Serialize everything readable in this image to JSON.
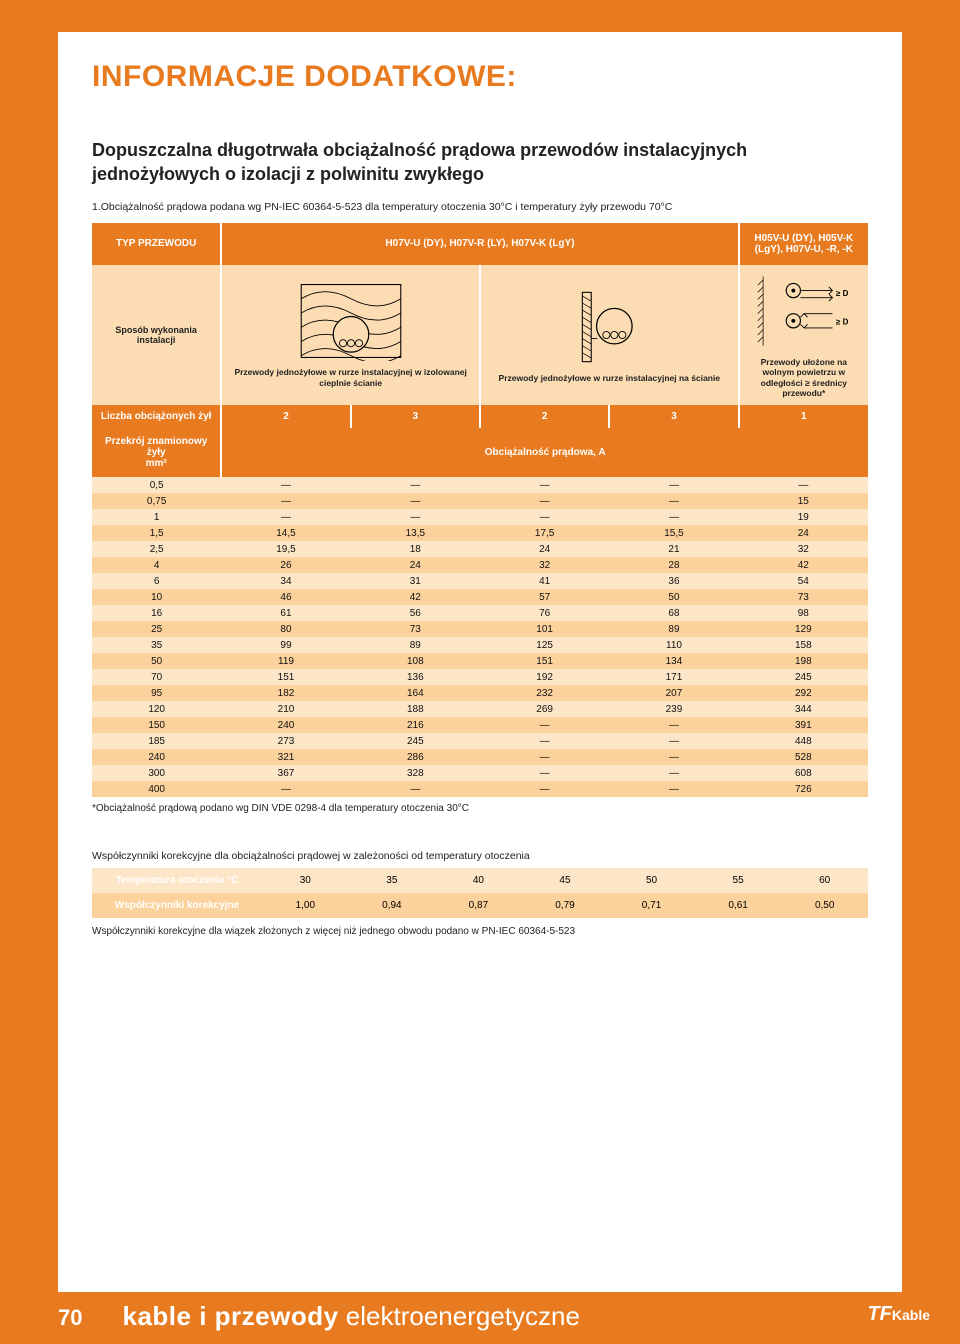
{
  "header": {
    "main_title": "INFORMACJE DODATKOWE:",
    "subtitle": "Dopuszczalna długotrwała obciążalność prądowa przewodów instalacyjnych jednożyłowych o izolacji z polwinitu zwykłego",
    "cond_note": "1.Obciążalność prądowa podana wg PN-IEC 60364-5-523 dla temperatury otoczenia 30°C i temperatury żyły przewodu 70°C"
  },
  "table_header": {
    "col1": "TYP PRZEWODU",
    "col2": "H07V-U (DY), H07V-R (LY), H07V-K (LgY)",
    "col3": "H05V-U (DY), H05V-K (LgY), H07V-U, -R, -K"
  },
  "diagram_row": {
    "col1": "Sposób wykonania instalacji",
    "cap2": "Przewody jednożyłowe w rurze instalacyjnej w izolowanej cieplnie ścianie",
    "cap3": "Przewody jednożyłowe w rurze instalacyjnej na ścianie",
    "cap4": "Przewody ułożone na wolnym powietrzu w odległości ≥ średnicy przewodu*",
    "d_label_top": "≥ D",
    "d_label_bot": "≥ D"
  },
  "count_row": {
    "label": "Liczba obciążonych żył",
    "vals": [
      "2",
      "3",
      "2",
      "3",
      "1"
    ]
  },
  "mid_row": {
    "label_lines": [
      "Przekrój znamionowy",
      "żyły",
      "mm²"
    ],
    "right": "Obciążalność prądowa, A"
  },
  "data": {
    "rows": [
      [
        "0,5",
        "—",
        "—",
        "—",
        "—",
        "—"
      ],
      [
        "0,75",
        "—",
        "—",
        "—",
        "—",
        "15"
      ],
      [
        "1",
        "—",
        "—",
        "—",
        "—",
        "19"
      ],
      [
        "1,5",
        "14,5",
        "13,5",
        "17,5",
        "15,5",
        "24"
      ],
      [
        "2,5",
        "19,5",
        "18",
        "24",
        "21",
        "32"
      ],
      [
        "4",
        "26",
        "24",
        "32",
        "28",
        "42"
      ],
      [
        "6",
        "34",
        "31",
        "41",
        "36",
        "54"
      ],
      [
        "10",
        "46",
        "42",
        "57",
        "50",
        "73"
      ],
      [
        "16",
        "61",
        "56",
        "76",
        "68",
        "98"
      ],
      [
        "25",
        "80",
        "73",
        "101",
        "89",
        "129"
      ],
      [
        "35",
        "99",
        "89",
        "125",
        "110",
        "158"
      ],
      [
        "50",
        "119",
        "108",
        "151",
        "134",
        "198"
      ],
      [
        "70",
        "151",
        "136",
        "192",
        "171",
        "245"
      ],
      [
        "95",
        "182",
        "164",
        "232",
        "207",
        "292"
      ],
      [
        "120",
        "210",
        "188",
        "269",
        "239",
        "344"
      ],
      [
        "150",
        "240",
        "216",
        "—",
        "—",
        "391"
      ],
      [
        "185",
        "273",
        "245",
        "—",
        "—",
        "448"
      ],
      [
        "240",
        "321",
        "286",
        "—",
        "—",
        "528"
      ],
      [
        "300",
        "367",
        "328",
        "—",
        "—",
        "608"
      ],
      [
        "400",
        "—",
        "—",
        "—",
        "—",
        "726"
      ]
    ]
  },
  "footnote": "*Obciążalność prądową podano wg DIN VDE 0298-4 dla temperatury otoczenia 30°C",
  "corr": {
    "title": "Współczynniki korekcyjne dla obciążalności prądowej w zależoności od temperatury otoczenia",
    "row1_label": "Temperatura otoczenia °C",
    "row1_vals": [
      "30",
      "35",
      "40",
      "45",
      "50",
      "55",
      "60"
    ],
    "row2_label": "Współczynniki korekcyjne",
    "row2_vals": [
      "1,00",
      "0,94",
      "0,87",
      "0,79",
      "0,71",
      "0,61",
      "0,50"
    ],
    "note": "Współczynniki korekcyjne dla wiązek złożonych z więcej niż jednego obwodu podano w PN-IEC 60364-5-523"
  },
  "footer": {
    "page": "70",
    "title_bold": "kable i przewody",
    "title_light": " elektroenergetyczne",
    "logo_big": "TF",
    "logo_small": "Kable"
  },
  "colors": {
    "brand": "#e87b1f",
    "stripeA": "#fde6c8",
    "stripeB": "#fcd29c"
  }
}
